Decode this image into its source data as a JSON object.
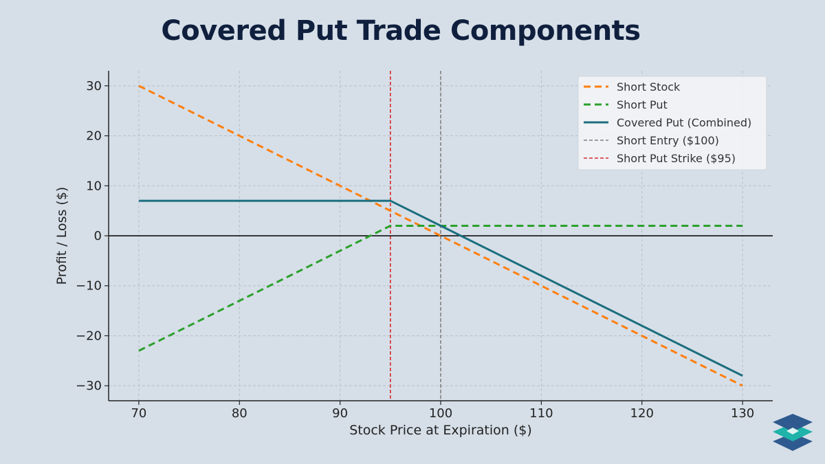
{
  "title": "Covered Put Trade Components",
  "chart_data": {
    "type": "line",
    "xlabel": "Stock Price at Expiration ($)",
    "ylabel": "Profit / Loss ($)",
    "xlim": [
      67,
      133
    ],
    "ylim": [
      -33,
      33
    ],
    "xticks": [
      70,
      80,
      90,
      100,
      110,
      120,
      130
    ],
    "yticks": [
      30,
      20,
      10,
      0,
      -10,
      -20,
      -30
    ],
    "ytick_labels": [
      "30",
      "20",
      "10",
      "0",
      "−10",
      "−20",
      "−30"
    ],
    "grid": true,
    "legend_position": "top-right",
    "series": [
      {
        "name": "Short Stock",
        "color": "#ff7f0e",
        "style": "dashed",
        "x": [
          70,
          130
        ],
        "y": [
          30,
          -30
        ]
      },
      {
        "name": "Short Put",
        "color": "#2ca02c",
        "style": "dashed",
        "x": [
          70,
          95,
          130
        ],
        "y": [
          -23,
          2,
          2
        ]
      },
      {
        "name": "Covered Put (Combined)",
        "color": "#1b6e7e",
        "style": "solid",
        "x": [
          70,
          95,
          130
        ],
        "y": [
          7,
          7,
          -28
        ]
      }
    ],
    "reference_lines": [
      {
        "name": "Short Entry ($100)",
        "orientation": "vertical",
        "x": 100,
        "color": "#7f7f7f",
        "style": "dashed"
      },
      {
        "name": "Short Put Strike ($95)",
        "orientation": "vertical",
        "x": 95,
        "color": "#d62728",
        "style": "dashed"
      },
      {
        "name": "",
        "orientation": "horizontal",
        "y": 0,
        "color": "#000000",
        "style": "solid"
      }
    ]
  }
}
